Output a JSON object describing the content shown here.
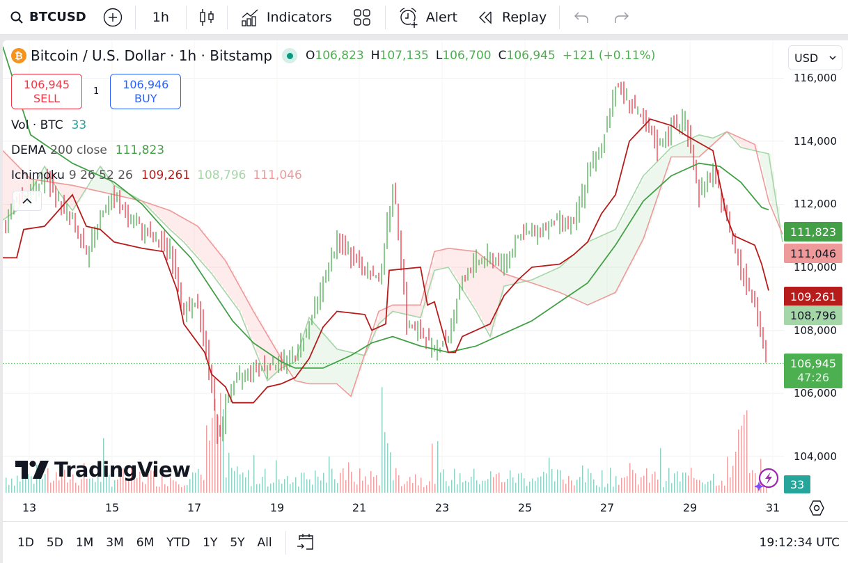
{
  "toolbar": {
    "symbol": "BTCUSD",
    "interval": "1h",
    "indicators_label": "Indicators",
    "alert_label": "Alert",
    "replay_label": "Replay"
  },
  "legend": {
    "title": "Bitcoin / U.S. Dollar · 1h · Bitstamp",
    "open_key": "O",
    "open": "106,823",
    "high_key": "H",
    "high": "107,135",
    "low_key": "L",
    "low": "106,700",
    "close_key": "C",
    "close": "106,945",
    "change": "+121 (+0.11%)"
  },
  "trade": {
    "sell_price": "106,945",
    "sell_label": "SELL",
    "quantity": "1",
    "buy_price": "106,946",
    "buy_label": "BUY"
  },
  "indicators": {
    "vol": {
      "name": "Vol · BTC",
      "value": "33"
    },
    "dema": {
      "name": "DEMA",
      "params": "200 close",
      "value": "111,823"
    },
    "ichimoku": {
      "name": "Ichimoku",
      "params": "9 26 52 26",
      "conversion": "109,261",
      "span_a": "108,796",
      "span_b": "111,046"
    }
  },
  "currency": "USD",
  "price_axis": {
    "ticks": [
      "116,000",
      "114,000",
      "112,000",
      "110,000",
      "108,000",
      "106,000",
      "104,000"
    ],
    "tags": {
      "dema": "111,823",
      "span_b": "111,046",
      "conversion": "109,261",
      "span_a": "108,796",
      "last_price": "106,945",
      "countdown": "47:26",
      "volume": "33"
    }
  },
  "time_axis": {
    "ticks": [
      "13",
      "15",
      "17",
      "19",
      "21",
      "23",
      "25",
      "27",
      "29",
      "31"
    ]
  },
  "range_buttons": [
    "1D",
    "5D",
    "1M",
    "3M",
    "6M",
    "YTD",
    "1Y",
    "5Y",
    "All"
  ],
  "clock": "19:12:34 UTC",
  "logo_text": "TradingView",
  "colors": {
    "up": "#4caf50",
    "down": "#f23645",
    "vol_up": "#8fd3c7",
    "vol_down": "#f0a1a1",
    "dema": "#43a047",
    "conversion": "#b71c1c",
    "span_a": "#a5d6a7",
    "span_b": "#ef9a9a",
    "volume_tag": "#26a69a"
  },
  "chart_data": {
    "type": "candlestick",
    "title": "Bitcoin / U.S. Dollar · 1h · Bitstamp",
    "x_ticks": [
      "13",
      "15",
      "17",
      "19",
      "21",
      "23",
      "25",
      "27",
      "29",
      "31"
    ],
    "ylim": [
      102800,
      117200
    ],
    "y_ticks": [
      104000,
      106000,
      108000,
      110000,
      112000,
      114000,
      116000
    ],
    "last_price": 106945,
    "price_path": [
      [
        0,
        111300
      ],
      [
        20,
        112200
      ],
      [
        40,
        112400
      ],
      [
        60,
        112800
      ],
      [
        80,
        112100
      ],
      [
        100,
        111500
      ],
      [
        120,
        110300
      ],
      [
        140,
        111700
      ],
      [
        160,
        112200
      ],
      [
        180,
        111600
      ],
      [
        200,
        111200
      ],
      [
        220,
        110800
      ],
      [
        240,
        110600
      ],
      [
        260,
        108600
      ],
      [
        280,
        108800
      ],
      [
        300,
        106300
      ],
      [
        310,
        104200
      ],
      [
        320,
        105800
      ],
      [
        340,
        106500
      ],
      [
        360,
        106800
      ],
      [
        380,
        106900
      ],
      [
        400,
        107000
      ],
      [
        420,
        107200
      ],
      [
        440,
        108200
      ],
      [
        460,
        109500
      ],
      [
        480,
        110800
      ],
      [
        500,
        110400
      ],
      [
        520,
        109900
      ],
      [
        540,
        109600
      ],
      [
        560,
        112500
      ],
      [
        570,
        110900
      ],
      [
        580,
        108200
      ],
      [
        600,
        107900
      ],
      [
        620,
        107400
      ],
      [
        640,
        107800
      ],
      [
        660,
        109600
      ],
      [
        680,
        110200
      ],
      [
        700,
        110300
      ],
      [
        720,
        110100
      ],
      [
        740,
        111000
      ],
      [
        760,
        111100
      ],
      [
        780,
        111300
      ],
      [
        800,
        111500
      ],
      [
        820,
        111300
      ],
      [
        840,
        113000
      ],
      [
        860,
        113800
      ],
      [
        880,
        115800
      ],
      [
        900,
        115300
      ],
      [
        920,
        114600
      ],
      [
        940,
        113800
      ],
      [
        960,
        114400
      ],
      [
        980,
        114700
      ],
      [
        1000,
        112300
      ],
      [
        1020,
        113000
      ],
      [
        1040,
        111600
      ],
      [
        1060,
        109900
      ],
      [
        1080,
        109000
      ],
      [
        1090,
        107600
      ],
      [
        1100,
        106945
      ]
    ],
    "series": [
      {
        "name": "DEMA 200 close",
        "color": "#43a047",
        "last": 111823
      },
      {
        "name": "Ichimoku Conversion",
        "color": "#b71c1c",
        "last": 109261
      },
      {
        "name": "Ichimoku Lead A",
        "color": "#a5d6a7",
        "last": 108796
      },
      {
        "name": "Ichimoku Lead B",
        "color": "#ef9a9a",
        "last": 111046
      }
    ],
    "dema_path": [
      [
        0,
        117000
      ],
      [
        40,
        114200
      ],
      [
        100,
        113300
      ],
      [
        160,
        112700
      ],
      [
        200,
        112000
      ],
      [
        240,
        111000
      ],
      [
        270,
        110300
      ],
      [
        300,
        109300
      ],
      [
        330,
        108300
      ],
      [
        360,
        107600
      ],
      [
        400,
        107000
      ],
      [
        420,
        106800
      ],
      [
        460,
        106800
      ],
      [
        500,
        107200
      ],
      [
        530,
        107600
      ],
      [
        560,
        107800
      ],
      [
        600,
        107500
      ],
      [
        640,
        107300
      ],
      [
        680,
        107500
      ],
      [
        720,
        107900
      ],
      [
        760,
        108300
      ],
      [
        800,
        108900
      ],
      [
        840,
        109500
      ],
      [
        880,
        110700
      ],
      [
        920,
        112100
      ],
      [
        960,
        112900
      ],
      [
        1000,
        113300
      ],
      [
        1030,
        113200
      ],
      [
        1060,
        112700
      ],
      [
        1090,
        111900
      ],
      [
        1100,
        111823
      ]
    ],
    "conversion_path": [
      [
        0,
        110300
      ],
      [
        20,
        110300
      ],
      [
        30,
        111200
      ],
      [
        60,
        111300
      ],
      [
        80,
        111800
      ],
      [
        100,
        112300
      ],
      [
        120,
        111300
      ],
      [
        140,
        111200
      ],
      [
        160,
        110800
      ],
      [
        200,
        110600
      ],
      [
        230,
        110500
      ],
      [
        250,
        109300
      ],
      [
        260,
        108200
      ],
      [
        290,
        107300
      ],
      [
        300,
        106600
      ],
      [
        320,
        106200
      ],
      [
        330,
        105700
      ],
      [
        360,
        105700
      ],
      [
        380,
        106200
      ],
      [
        400,
        106300
      ],
      [
        420,
        106500
      ],
      [
        440,
        107100
      ],
      [
        460,
        108100
      ],
      [
        480,
        108600
      ],
      [
        520,
        108500
      ],
      [
        530,
        108000
      ],
      [
        550,
        108200
      ],
      [
        555,
        109900
      ],
      [
        600,
        110000
      ],
      [
        610,
        108800
      ],
      [
        620,
        108900
      ],
      [
        640,
        107300
      ],
      [
        650,
        107300
      ],
      [
        660,
        107800
      ],
      [
        700,
        108200
      ],
      [
        720,
        109100
      ],
      [
        740,
        109600
      ],
      [
        760,
        110000
      ],
      [
        800,
        110100
      ],
      [
        820,
        110400
      ],
      [
        840,
        110800
      ],
      [
        860,
        111700
      ],
      [
        880,
        112300
      ],
      [
        900,
        114000
      ],
      [
        930,
        114700
      ],
      [
        960,
        114500
      ],
      [
        980,
        114200
      ],
      [
        1020,
        113700
      ],
      [
        1040,
        111600
      ],
      [
        1050,
        111000
      ],
      [
        1080,
        110700
      ],
      [
        1090,
        110100
      ],
      [
        1100,
        109261
      ]
    ],
    "span_a_path": [
      [
        0,
        111500
      ],
      [
        20,
        111800
      ],
      [
        40,
        112400
      ],
      [
        60,
        113200
      ],
      [
        80,
        112400
      ],
      [
        100,
        111800
      ],
      [
        140,
        113200
      ],
      [
        160,
        112600
      ],
      [
        200,
        112100
      ],
      [
        240,
        111200
      ],
      [
        260,
        110800
      ],
      [
        300,
        109800
      ],
      [
        340,
        108600
      ],
      [
        380,
        106400
      ],
      [
        400,
        106800
      ],
      [
        420,
        107000
      ],
      [
        440,
        108400
      ],
      [
        480,
        107400
      ],
      [
        520,
        107200
      ],
      [
        540,
        108200
      ],
      [
        560,
        108600
      ],
      [
        600,
        108400
      ],
      [
        620,
        109900
      ],
      [
        640,
        110000
      ],
      [
        680,
        108600
      ],
      [
        700,
        107800
      ],
      [
        720,
        109400
      ],
      [
        760,
        109600
      ],
      [
        800,
        110000
      ],
      [
        840,
        110800
      ],
      [
        880,
        111200
      ],
      [
        920,
        112900
      ],
      [
        960,
        113800
      ],
      [
        1000,
        114200
      ],
      [
        1020,
        114100
      ],
      [
        1040,
        114300
      ],
      [
        1060,
        113800
      ],
      [
        1080,
        113700
      ],
      [
        1100,
        113600
      ],
      [
        1120,
        110800
      ]
    ],
    "span_b_path": [
      [
        0,
        113700
      ],
      [
        40,
        112800
      ],
      [
        100,
        112600
      ],
      [
        200,
        112100
      ],
      [
        240,
        111800
      ],
      [
        280,
        111300
      ],
      [
        320,
        110200
      ],
      [
        360,
        108600
      ],
      [
        400,
        107100
      ],
      [
        420,
        106400
      ],
      [
        440,
        106300
      ],
      [
        480,
        106300
      ],
      [
        500,
        105900
      ],
      [
        540,
        108600
      ],
      [
        560,
        108800
      ],
      [
        600,
        108800
      ],
      [
        620,
        110500
      ],
      [
        640,
        110600
      ],
      [
        680,
        110500
      ],
      [
        720,
        109800
      ],
      [
        760,
        109500
      ],
      [
        800,
        109200
      ],
      [
        840,
        108800
      ],
      [
        880,
        109200
      ],
      [
        920,
        110900
      ],
      [
        960,
        113500
      ],
      [
        1000,
        113500
      ],
      [
        1040,
        114300
      ],
      [
        1080,
        113900
      ],
      [
        1100,
        112100
      ],
      [
        1120,
        111046
      ]
    ]
  }
}
